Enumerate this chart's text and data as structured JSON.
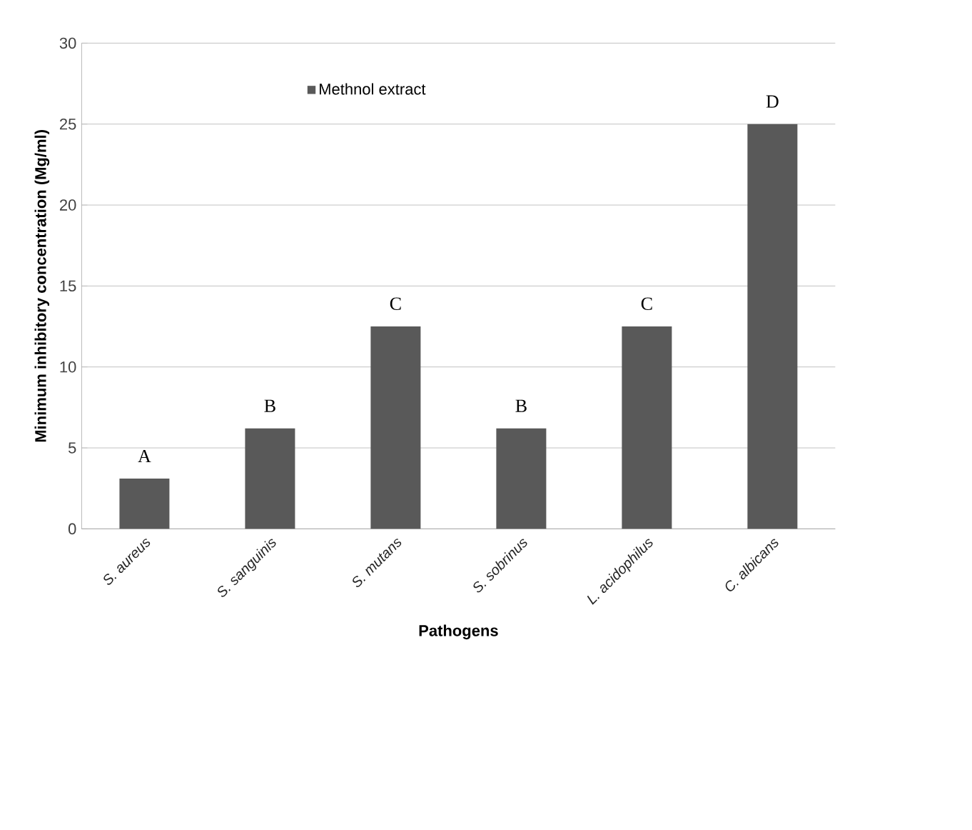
{
  "chart_data": {
    "type": "bar",
    "xlabel": "Pathogens",
    "ylabel": "Minimum inhibitory concentration (Mg/ml)",
    "categories": [
      "S. aureus",
      "S. sanguinis",
      "S. mutans",
      "S. sobrinus",
      "L. acidophilus",
      "C. albicans"
    ],
    "series": [
      {
        "name": "Methnol extract",
        "color": "#595959",
        "values": [
          3.1,
          6.2,
          12.5,
          6.2,
          12.5,
          25
        ]
      }
    ],
    "ylim": [
      0,
      30
    ],
    "yticks": [
      0,
      5,
      10,
      15,
      20,
      25,
      30
    ],
    "grid": "y",
    "legend": "top",
    "annotations": [
      {
        "text": "A",
        "x": "S. aureus",
        "y": 3.1
      },
      {
        "text": "B",
        "x": "S. sanguinis",
        "y": 6.2
      },
      {
        "text": "C",
        "x": "S. mutans",
        "y": 12.5
      },
      {
        "text": "B",
        "x": "S. sobrinus",
        "y": 6.2
      },
      {
        "text": "C",
        "x": "L. acidophilus",
        "y": 12.5
      },
      {
        "text": "D",
        "x": "C. albicans",
        "y": 25
      }
    ]
  }
}
